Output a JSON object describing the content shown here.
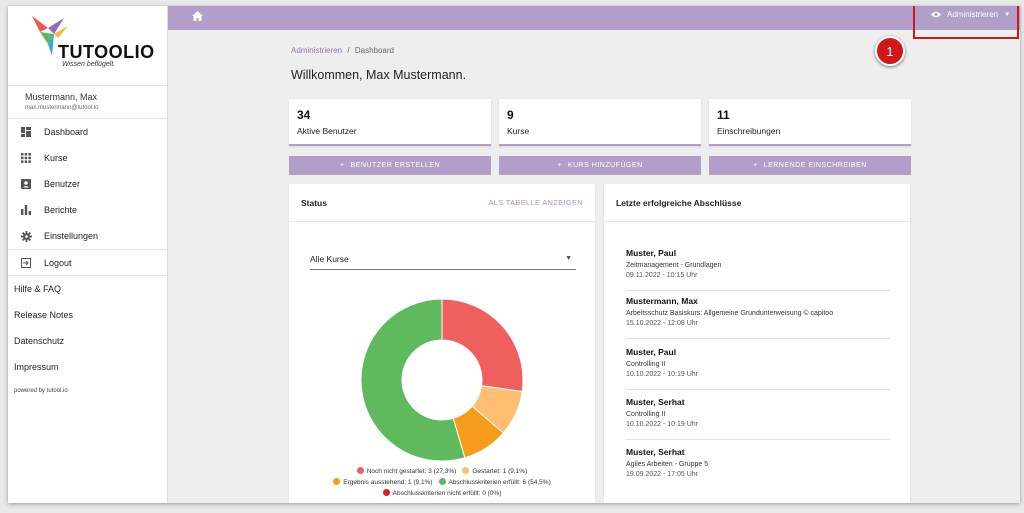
{
  "app": {
    "name": "TUTOOLIO",
    "tagline": "Wissen beflügelt."
  },
  "user": {
    "name": "Mustermann, Max",
    "email": "max.mustermann@tutool.io"
  },
  "sidebar": {
    "items": [
      {
        "label": "Dashboard",
        "icon": "dashboard-icon"
      },
      {
        "label": "Kurse",
        "icon": "grid-icon"
      },
      {
        "label": "Benutzer",
        "icon": "user-card-icon"
      },
      {
        "label": "Berichte",
        "icon": "bar-chart-icon"
      },
      {
        "label": "Einstellungen",
        "icon": "gear-icon"
      }
    ],
    "logout": "Logout",
    "links": [
      "Hilfe & FAQ",
      "Release Notes",
      "Datenschutz",
      "Impressum"
    ],
    "powered": "powered by tutool.io"
  },
  "topbar": {
    "role": "Administrieren"
  },
  "annotation": {
    "badge": "1",
    "color": "#d01818"
  },
  "breadcrumb": {
    "parent": "Administrieren",
    "sep": "/",
    "current": "Dashboard"
  },
  "welcome": "Willkommen, Max Mustermann.",
  "stats": [
    {
      "value": "34",
      "label": "Aktive Benutzer"
    },
    {
      "value": "9",
      "label": "Kurse"
    },
    {
      "value": "11",
      "label": "Einschreibungen"
    }
  ],
  "actions": [
    "BENUTZER ERSTELLEN",
    "KURS HINZUFÜGEN",
    "LERNENDE EINSCHREIBEN"
  ],
  "status": {
    "title": "Status",
    "table_link": "ALS TABELLE ANZEIGEN",
    "filter": "Alle Kurse"
  },
  "chart_data": {
    "type": "pie",
    "categories": [
      "Noch nicht gestartet",
      "Gestartet",
      "Ergebnis ausstehend",
      "Abschlusskriterien erfüllt",
      "Abschlusskriterien nicht erfüllt"
    ],
    "values": [
      3,
      1,
      1,
      6,
      0
    ],
    "colors": [
      "#ef5f5e",
      "#ffbe72",
      "#f59c1a",
      "#5fba5e",
      "#e11d1d"
    ],
    "legend": [
      "Noch nicht gestartet: 3 (27,3%)",
      "Gestartet: 1 (9,1%)",
      "Ergebnis ausstehend: 1 (9,1%)",
      "Abschlusskriterien erfüllt: 6 (54,5%)",
      "Abschlusskriterien nicht erfüllt: 0 (0%)"
    ]
  },
  "recent": {
    "title": "Letzte erfolgreiche Abschlüsse",
    "entries": [
      {
        "name": "Muster, Paul",
        "course": "Zeitmanagement - Grundlagen",
        "date": "09.11.2022 - 10:15 Uhr"
      },
      {
        "name": "Mustermann, Max",
        "course": "Arbeitsschutz Basiskurs: Allgemeine Grundunterweisung © capitoo",
        "date": "15.10.2022 - 12:08 Uhr"
      },
      {
        "name": "Muster, Paul",
        "course": "Controlling II",
        "date": "10.10.2022 - 10:19 Uhr"
      },
      {
        "name": "Muster, Serhat",
        "course": "Controlling II",
        "date": "10.10.2022 - 10:19 Uhr"
      },
      {
        "name": "Muster, Serhat",
        "course": "Agiles Arbeiten - Gruppe 5",
        "date": "19.09.2022 - 17:05 Uhr"
      }
    ]
  }
}
